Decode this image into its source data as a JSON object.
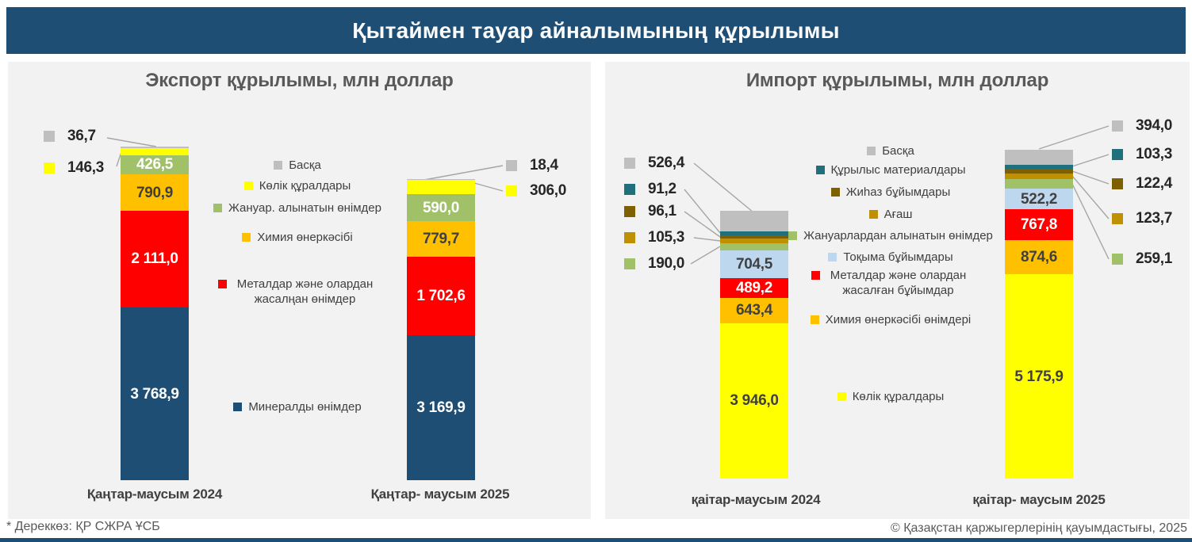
{
  "banner": {
    "title": "Қытаймен тауар айналымының құрылымы"
  },
  "footer": {
    "source": "* Дереккөз: ҚР СЖРА ҰСБ",
    "copyright": "© Қазақстан қаржыгерлерінің қауымдастығы, 2025"
  },
  "colors": {
    "banner_blue": "#1F4E74",
    "panel_bg": "#F2F2F2",
    "title_gray": "#595959",
    "label_dark": "#404040",
    "callout_line": "#A6A6A6"
  },
  "chart_data": [
    {
      "type": "bar",
      "stacked": true,
      "title": "Экспорт құрылымы, млн доллар",
      "unit": "млн доллар",
      "categories": [
        "Қаңтар-маусым 2024",
        "Қаңтар- маусым 2025"
      ],
      "totals": [
        7280.3,
        6566.6
      ],
      "legend_position": "middle",
      "grid": false,
      "series": [
        {
          "name": "Басқа",
          "color": "#BFBFBF",
          "values": [
            36.7,
            18.4
          ],
          "labels": [
            "36,7",
            "18,4"
          ]
        },
        {
          "name": "Көлік құралдары",
          "color": "#FFFF00",
          "values": [
            146.3,
            306.0
          ],
          "labels": [
            "146,3",
            "306,0"
          ]
        },
        {
          "name": "Жануар. алынатын өнімдер",
          "color": "#A0C168",
          "values": [
            426.5,
            590.0
          ],
          "labels": [
            "426,5",
            "590,0"
          ]
        },
        {
          "name": "Химия өнеркәсібі",
          "color": "#FFC000",
          "values": [
            790.9,
            779.7
          ],
          "labels": [
            "790,9",
            "779,7"
          ]
        },
        {
          "name": "Металдар және олардан жасалңан өнімдер",
          "color": "#FF0000",
          "values": [
            2111.0,
            1702.6
          ],
          "labels": [
            "2 111,0",
            "1 702,6"
          ]
        },
        {
          "name": "Минералды өнімдер",
          "color": "#1F4E74",
          "values": [
            3768.9,
            3169.9
          ],
          "labels": [
            "3 768,9",
            "3 169,9"
          ]
        }
      ]
    },
    {
      "type": "bar",
      "stacked": true,
      "title": "Импорт құрылымы, млн доллар",
      "unit": "млн доллар",
      "categories": [
        "қаітар-маусым 2024",
        "қаітар- маусым  2025"
      ],
      "totals": [
        6792.1,
        8343.0
      ],
      "legend_position": "middle",
      "grid": false,
      "series": [
        {
          "name": "Басқа",
          "color": "#BFBFBF",
          "values": [
            526.4,
            394.0
          ],
          "labels": [
            "526,4",
            "394,0"
          ]
        },
        {
          "name": "Құрылыс материалдары",
          "color": "#1F6F7D",
          "values": [
            91.2,
            103.3
          ],
          "labels": [
            "91,2",
            "103,3"
          ]
        },
        {
          "name": "Жиһаз бұйымдары",
          "color": "#7F6000",
          "values": [
            96.1,
            122.4
          ],
          "labels": [
            "96,1",
            "122,4"
          ]
        },
        {
          "name": "Ағаш",
          "color": "#BF9000",
          "values": [
            105.3,
            123.7
          ],
          "labels": [
            "105,3",
            "123,7"
          ]
        },
        {
          "name": "Жануарлардан алынатын өнімдер",
          "color": "#A0C168",
          "values": [
            190.0,
            259.1
          ],
          "labels": [
            "190,0",
            "259,1"
          ]
        },
        {
          "name": "Тоқыма бұйымдары",
          "color": "#BDD7EE",
          "values": [
            704.5,
            522.2
          ],
          "labels": [
            "704,5",
            "522,2"
          ]
        },
        {
          "name": "Металдар және олардан жасалған бұйымдар",
          "color": "#FF0000",
          "values": [
            489.2,
            767.8
          ],
          "labels": [
            "489,2",
            "767,8"
          ]
        },
        {
          "name": "Химия  өнеркәсібі өнімдері",
          "color": "#FFC000",
          "values": [
            643.4,
            874.6
          ],
          "labels": [
            "643,4",
            "874,6"
          ]
        },
        {
          "name": "Көлік құралдары",
          "color": "#FFFF00",
          "values": [
            3946.0,
            5175.9
          ],
          "labels": [
            "3 946,0",
            "5 175,9"
          ]
        }
      ]
    }
  ]
}
